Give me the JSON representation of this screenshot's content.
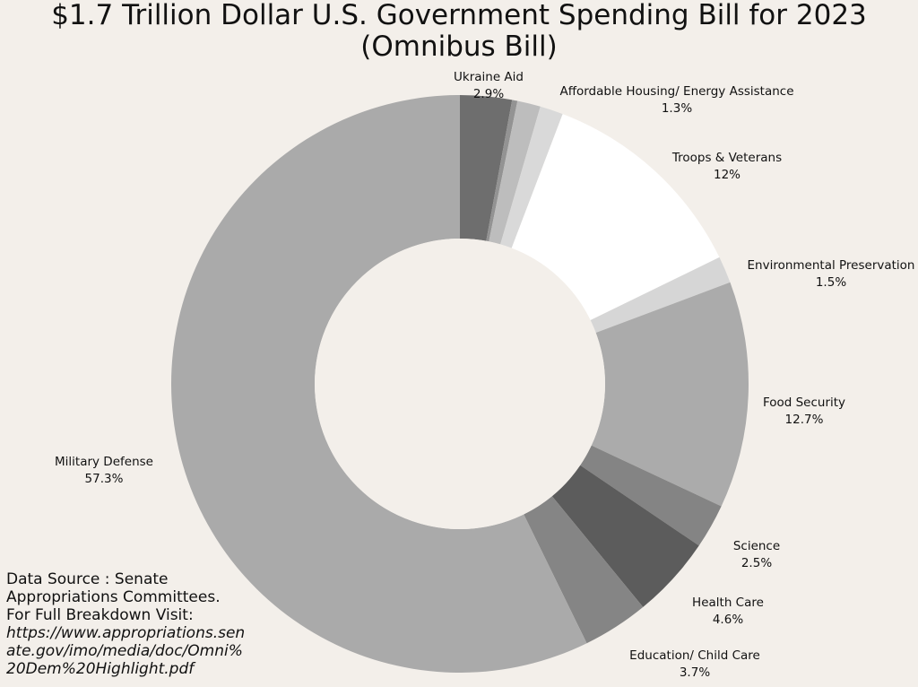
{
  "chart_data": {
    "type": "pie",
    "style": "donut",
    "title_line1": "$1.7 Trillion Dollar U.S. Government Spending Bill for 2023",
    "title_line2": "(Omnibus Bill)",
    "slices": [
      {
        "key": "ukraine",
        "label": "Ukraine Aid",
        "value_label": "2.9%",
        "value": 2.9,
        "color": "#6e6e6e"
      },
      {
        "key": "thin1",
        "label": "",
        "value_label": "",
        "value": 0.3,
        "color": "#939393"
      },
      {
        "key": "housing",
        "label": "Affordable Housing/ Energy Assistance",
        "value_label": "1.3%",
        "value": 1.3,
        "color": "#bdbdbd"
      },
      {
        "key": "thin2",
        "label": "",
        "value_label": "",
        "value": 1.3,
        "color": "#d9d9d9"
      },
      {
        "key": "troops",
        "label": "Troops & Veterans",
        "value_label": "12%",
        "value": 12,
        "color": "#ffffff"
      },
      {
        "key": "environment",
        "label": "Environmental Preservation",
        "value_label": "1.5%",
        "value": 1.5,
        "color": "#d6d6d6"
      },
      {
        "key": "food",
        "label": "Food Security",
        "value_label": "12.7%",
        "value": 12.7,
        "color": "#ababab"
      },
      {
        "key": "science",
        "label": "Science",
        "value_label": "2.5%",
        "value": 2.5,
        "color": "#848484"
      },
      {
        "key": "health",
        "label": "Health Care",
        "value_label": "4.6%",
        "value": 4.6,
        "color": "#5c5c5c"
      },
      {
        "key": "education",
        "label": "Education/ Child Care",
        "value_label": "3.7%",
        "value": 3.7,
        "color": "#858585"
      },
      {
        "key": "military",
        "label": "Military Defense",
        "value_label": "57.3%",
        "value": 57.3,
        "color": "#aaaaaa"
      }
    ]
  },
  "source": {
    "line1": "Data Source : Senate",
    "line2": "Appropriations Committees.",
    "line3": "For Full Breakdown Visit:",
    "url": "https://www.appropriations.senate.gov/imo/media/doc/Omni%20Dem%20Highlight.pdf"
  }
}
